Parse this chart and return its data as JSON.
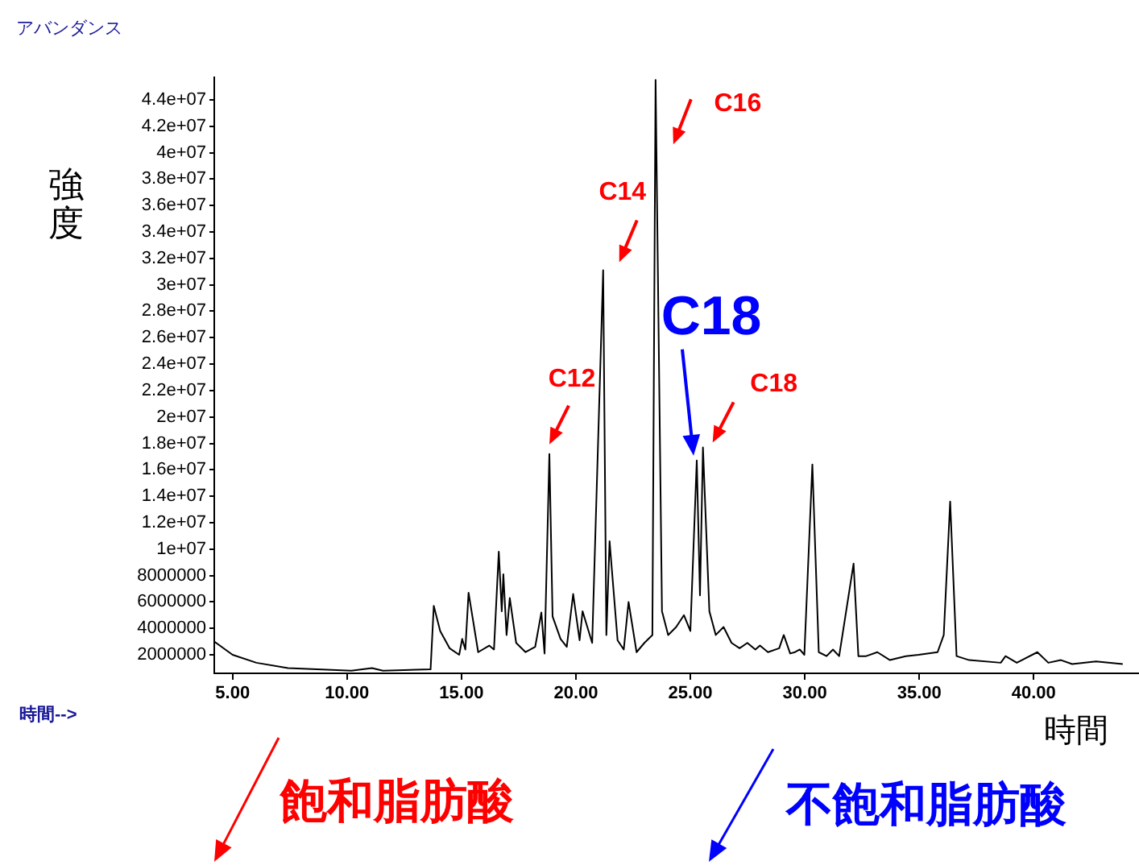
{
  "chart_data": {
    "type": "line",
    "ylabel": "強度",
    "xlabel": "時間",
    "annotations": [
      "アバンダンス",
      "時間-->",
      {
        "text": "C12",
        "x": 18.84,
        "y": 17200000
      },
      {
        "text": "C14",
        "x": 21.19,
        "y": 31100000
      },
      {
        "text": "C16",
        "x": 23.48,
        "y": 45500000
      },
      {
        "text": "C18",
        "x": 25.28,
        "y": 16700000
      },
      {
        "text": "C18",
        "x": 25.55,
        "y": 17700000
      },
      "飽和脂肪酸",
      "不飽和脂肪酸"
    ],
    "xlim": [
      4.2,
      44.6
    ],
    "ylim": [
      600000,
      45700000
    ],
    "xticks": [
      {
        "value": 5,
        "label": "5.00"
      },
      {
        "value": 10,
        "label": "10.00"
      },
      {
        "value": 15,
        "label": "15.00"
      },
      {
        "value": 20,
        "label": "20.00"
      },
      {
        "value": 25,
        "label": "25.00"
      },
      {
        "value": 30,
        "label": "30.00"
      },
      {
        "value": 35,
        "label": "35.00"
      },
      {
        "value": 40,
        "label": "40.00"
      }
    ],
    "yticks": [
      2000000,
      4000000,
      6000000,
      8000000,
      {
        "value": 10000000,
        "label": "1e+07"
      },
      {
        "value": 12000000,
        "label": "1.2e+07"
      },
      {
        "value": 14000000,
        "label": "1.4e+07"
      },
      {
        "value": 16000000,
        "label": "1.6e+07"
      },
      {
        "value": 18000000,
        "label": "1.8e+07"
      },
      {
        "value": 20000000,
        "label": "2e+07"
      },
      {
        "value": 22000000,
        "label": "2.2e+07"
      },
      {
        "value": 24000000,
        "label": "2.4e+07"
      },
      {
        "value": 26000000,
        "label": "2.6e+07"
      },
      {
        "value": 28000000,
        "label": "2.8e+07"
      },
      {
        "value": 30000000,
        "label": "3e+07"
      },
      {
        "value": 32000000,
        "label": "3.2e+07"
      },
      {
        "value": 34000000,
        "label": "3.4e+07"
      },
      {
        "value": 36000000,
        "label": "3.6e+07"
      },
      {
        "value": 38000000,
        "label": "3.8e+07"
      },
      {
        "value": 40000000,
        "label": "4e+07"
      },
      {
        "value": 42000000,
        "label": "4.2e+07"
      },
      {
        "value": 44000000,
        "label": "4.4e+07"
      }
    ],
    "grid": false,
    "legend": false,
    "marker": "none",
    "line_style": "solid",
    "series": [
      {
        "color": "#000000",
        "x": [
          4.2,
          5.0,
          6.04,
          7.42,
          10.19,
          11.09,
          11.57,
          13.65,
          13.79,
          14.07,
          14.48,
          14.9,
          15.03,
          15.17,
          15.31,
          15.73,
          16.21,
          16.42,
          16.63,
          16.76,
          16.83,
          16.97,
          17.11,
          17.39,
          17.8,
          18.22,
          18.49,
          18.63,
          18.84,
          18.98,
          19.33,
          19.6,
          19.88,
          20.16,
          20.29,
          20.71,
          21.19,
          21.33,
          21.47,
          21.82,
          22.09,
          22.3,
          22.65,
          22.99,
          23.34,
          23.48,
          23.76,
          24.03,
          24.38,
          24.72,
          25.0,
          25.28,
          25.42,
          25.55,
          25.83,
          26.11,
          26.45,
          26.8,
          27.15,
          27.49,
          27.84,
          28.04,
          28.39,
          28.88,
          29.08,
          29.36,
          29.57,
          29.78,
          29.98,
          30.33,
          30.61,
          30.95,
          31.23,
          31.5,
          32.13,
          32.34,
          32.68,
          33.17,
          33.72,
          34.41,
          34.97,
          35.8,
          36.07,
          36.35,
          36.63,
          37.18,
          38.56,
          38.77,
          39.26,
          40.16,
          40.64,
          41.19,
          41.68,
          42.72,
          43.89
        ],
        "values": [
          3000000,
          2000000,
          1400000,
          1000000,
          800000,
          1000000,
          800000,
          900000,
          5700000,
          3800000,
          2500000,
          2000000,
          3200000,
          2400000,
          6700000,
          2200000,
          2700000,
          2400000,
          9800000,
          5300000,
          8100000,
          3500000,
          6300000,
          2900000,
          2200000,
          2600000,
          5200000,
          2100000,
          17200000,
          4900000,
          3200000,
          2600000,
          6600000,
          3100000,
          5300000,
          2900000,
          31100000,
          3500000,
          10600000,
          3100000,
          2400000,
          6000000,
          2200000,
          2900000,
          3500000,
          45500000,
          5300000,
          3500000,
          4100000,
          5000000,
          3800000,
          16700000,
          6500000,
          17700000,
          5300000,
          3500000,
          4100000,
          2900000,
          2500000,
          2900000,
          2400000,
          2700000,
          2200000,
          2500000,
          3500000,
          2100000,
          2200000,
          2400000,
          2000000,
          16400000,
          2200000,
          1900000,
          2400000,
          1900000,
          8900000,
          1900000,
          1900000,
          2200000,
          1600000,
          1900000,
          2000000,
          2200000,
          3500000,
          13600000,
          1900000,
          1600000,
          1400000,
          1900000,
          1400000,
          2200000,
          1400000,
          1600000,
          1300000,
          1500000,
          1300000
        ]
      }
    ]
  }
}
